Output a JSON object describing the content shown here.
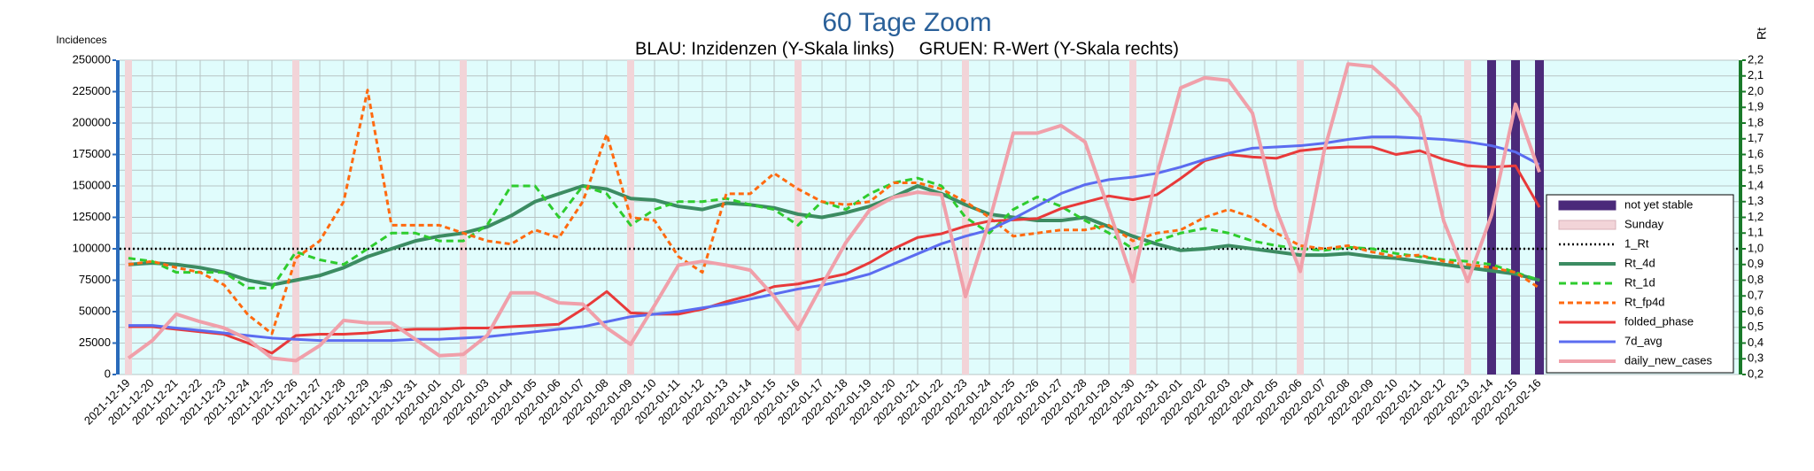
{
  "chart_data": {
    "type": "line",
    "title": "60 Tage Zoom",
    "subtitle": "BLAU: Inzidenzen (Y-Skala links)     GRUEN: R-Wert (Y-Skala rechts)",
    "y_label": "Incidences",
    "y2_label": "Rt",
    "categories": [
      "2021-12-19",
      "2021-12-20",
      "2021-12-21",
      "2021-12-22",
      "2021-12-23",
      "2021-12-24",
      "2021-12-25",
      "2021-12-26",
      "2021-12-27",
      "2021-12-28",
      "2021-12-29",
      "2021-12-30",
      "2021-12-31",
      "2022-01-01",
      "2022-01-02",
      "2022-01-03",
      "2022-01-04",
      "2022-01-05",
      "2022-01-06",
      "2022-01-07",
      "2022-01-08",
      "2022-01-09",
      "2022-01-10",
      "2022-01-11",
      "2022-01-12",
      "2022-01-13",
      "2022-01-14",
      "2022-01-15",
      "2022-01-16",
      "2022-01-17",
      "2022-01-18",
      "2022-01-19",
      "2022-01-20",
      "2022-01-21",
      "2022-01-22",
      "2022-01-23",
      "2022-01-24",
      "2022-01-25",
      "2022-01-26",
      "2022-01-27",
      "2022-01-28",
      "2022-01-29",
      "2022-01-30",
      "2022-01-31",
      "2022-02-01",
      "2022-02-02",
      "2022-02-03",
      "2022-02-04",
      "2022-02-05",
      "2022-02-06",
      "2022-02-07",
      "2022-02-08",
      "2022-02-09",
      "2022-02-10",
      "2022-02-11",
      "2022-02-12",
      "2022-02-13",
      "2022-02-14",
      "2022-02-15",
      "2022-02-16"
    ],
    "ylim": [
      0,
      250000
    ],
    "yticks": [
      0,
      25000,
      50000,
      75000,
      100000,
      125000,
      150000,
      175000,
      200000,
      225000,
      250000
    ],
    "y2lim": [
      0.2,
      2.2
    ],
    "y2ticks": [
      {
        "value": 0.2,
        "label": "0,2"
      },
      {
        "value": 0.3,
        "label": "0,3"
      },
      {
        "value": 0.4,
        "label": "0,4"
      },
      {
        "value": 0.5,
        "label": "0,5"
      },
      {
        "value": 0.6,
        "label": "0,6"
      },
      {
        "value": 0.7,
        "label": "0,7"
      },
      {
        "value": 0.8,
        "label": "0,8"
      },
      {
        "value": 0.9,
        "label": "0,9"
      },
      {
        "value": 1.0,
        "label": "1,0"
      },
      {
        "value": 1.1,
        "label": "1,1"
      },
      {
        "value": 1.2,
        "label": "1,2"
      },
      {
        "value": 1.3,
        "label": "1,3"
      },
      {
        "value": 1.4,
        "label": "1,4"
      },
      {
        "value": 1.5,
        "label": "1,5"
      },
      {
        "value": 1.6,
        "label": "1,6"
      },
      {
        "value": 1.7,
        "label": "1,7"
      },
      {
        "value": 1.8,
        "label": "1,8"
      },
      {
        "value": 1.9,
        "label": "1,9"
      },
      {
        "value": 2.0,
        "label": "2,0"
      },
      {
        "value": 2.1,
        "label": "2,1"
      },
      {
        "value": 2.2,
        "label": "2,2"
      }
    ],
    "grid": true,
    "legend": "right",
    "bands": [
      {
        "name": "not yet stable",
        "color": "#4b2a7a",
        "categories": [
          "2022-02-14",
          "2022-02-15",
          "2022-02-16"
        ]
      },
      {
        "name": "Sunday",
        "color": "#f2d4d8",
        "categories": [
          "2021-12-19",
          "2021-12-26",
          "2022-01-02",
          "2022-01-09",
          "2022-01-16",
          "2022-01-23",
          "2022-01-30",
          "2022-02-06",
          "2022-02-13"
        ]
      }
    ],
    "hlines": [
      {
        "name": "1_Rt",
        "value": 1.0,
        "axis": "y2",
        "color": "#000000"
      }
    ],
    "series": [
      {
        "name": "Rt_4d",
        "axis": "y2",
        "color": "#3c8c62",
        "width": 4,
        "dash": "none",
        "values": [
          0.9,
          0.91,
          0.9,
          0.88,
          0.85,
          0.8,
          0.77,
          0.8,
          0.83,
          0.88,
          0.95,
          1.0,
          1.05,
          1.08,
          1.1,
          1.14,
          1.21,
          1.3,
          1.35,
          1.4,
          1.38,
          1.32,
          1.31,
          1.27,
          1.25,
          1.29,
          1.28,
          1.26,
          1.22,
          1.2,
          1.23,
          1.27,
          1.33,
          1.4,
          1.35,
          1.28,
          1.22,
          1.2,
          1.18,
          1.18,
          1.2,
          1.14,
          1.08,
          1.03,
          0.99,
          1.0,
          1.02,
          1.0,
          0.98,
          0.96,
          0.96,
          0.97,
          0.95,
          0.94,
          0.92,
          0.9,
          0.88,
          0.86,
          0.84,
          0.8
        ]
      },
      {
        "name": "Rt_1d",
        "axis": "y2",
        "color": "#2ecc2e",
        "width": 3,
        "dash": "8 5",
        "values": [
          0.94,
          0.92,
          0.85,
          0.85,
          0.85,
          0.75,
          0.75,
          0.98,
          0.93,
          0.9,
          1.0,
          1.1,
          1.1,
          1.05,
          1.05,
          1.15,
          1.4,
          1.4,
          1.2,
          1.4,
          1.35,
          1.15,
          1.25,
          1.3,
          1.3,
          1.32,
          1.28,
          1.25,
          1.15,
          1.3,
          1.25,
          1.35,
          1.42,
          1.45,
          1.4,
          1.2,
          1.1,
          1.25,
          1.33,
          1.27,
          1.18,
          1.1,
          1.0,
          1.05,
          1.1,
          1.13,
          1.1,
          1.05,
          1.02,
          1.0,
          0.99,
          1.01,
          1.0,
          0.97,
          0.95,
          0.93,
          0.92,
          0.9,
          0.85,
          0.8
        ]
      },
      {
        "name": "Rt_fp4d",
        "axis": "y2",
        "color": "#ff6a10",
        "width": 3,
        "dash": "6 4",
        "values": [
          0.9,
          0.92,
          0.88,
          0.85,
          0.77,
          0.58,
          0.46,
          0.94,
          1.05,
          1.3,
          2.01,
          1.15,
          1.15,
          1.15,
          1.1,
          1.05,
          1.03,
          1.12,
          1.07,
          1.3,
          1.73,
          1.2,
          1.18,
          0.95,
          0.85,
          1.35,
          1.35,
          1.48,
          1.38,
          1.3,
          1.28,
          1.3,
          1.42,
          1.42,
          1.38,
          1.3,
          1.2,
          1.08,
          1.1,
          1.12,
          1.12,
          1.15,
          1.05,
          1.1,
          1.12,
          1.2,
          1.25,
          1.2,
          1.1,
          1.02,
          1.0,
          1.02,
          0.98,
          0.95,
          0.96,
          0.92,
          0.9,
          0.88,
          0.85,
          0.75
        ]
      },
      {
        "name": "folded_phase",
        "axis": "y",
        "color": "#e83a3a",
        "width": 3,
        "dash": "none",
        "values": [
          38000,
          38000,
          36000,
          34000,
          32000,
          25000,
          17000,
          31000,
          32000,
          32000,
          33000,
          35000,
          36000,
          36000,
          37000,
          37000,
          38000,
          39000,
          40000,
          52000,
          66000,
          49000,
          48000,
          48000,
          52000,
          58000,
          63000,
          70000,
          72000,
          76000,
          80000,
          89000,
          100000,
          109000,
          112000,
          118000,
          122000,
          123000,
          124000,
          132000,
          137000,
          142000,
          139000,
          143000,
          156000,
          170000,
          175000,
          173000,
          172000,
          178000,
          180000,
          181000,
          181000,
          175000,
          178000,
          171000,
          166000,
          165000,
          166000,
          133000
        ]
      },
      {
        "name": "7d_avg",
        "axis": "y",
        "color": "#5b6cf0",
        "width": 3,
        "dash": "none",
        "values": [
          39000,
          39000,
          37000,
          35000,
          33000,
          31000,
          29000,
          28000,
          27000,
          27000,
          27000,
          27000,
          28000,
          28000,
          29000,
          30000,
          32000,
          34000,
          36000,
          38000,
          42000,
          46000,
          48000,
          50000,
          53000,
          56000,
          60000,
          64000,
          68000,
          71000,
          75000,
          80000,
          88000,
          96000,
          104000,
          110000,
          115000,
          124000,
          134000,
          144000,
          151000,
          155000,
          157000,
          160000,
          165000,
          171000,
          176000,
          180000,
          181000,
          182000,
          184000,
          187000,
          189000,
          189000,
          188000,
          187000,
          185000,
          182000,
          177000,
          167000
        ]
      },
      {
        "name": "daily_new_cases",
        "axis": "y",
        "color": "#f0a0aa",
        "width": 4,
        "dash": "none",
        "values": [
          13000,
          27000,
          48000,
          42000,
          37000,
          28000,
          13000,
          11000,
          23000,
          43000,
          41000,
          41000,
          28000,
          15000,
          16000,
          31000,
          65000,
          65000,
          57000,
          56000,
          37000,
          24000,
          55000,
          87000,
          90000,
          87000,
          83000,
          62000,
          36000,
          71000,
          105000,
          131000,
          141000,
          145000,
          143000,
          62000,
          122000,
          192000,
          192000,
          198000,
          185000,
          131000,
          74000,
          159000,
          228000,
          236000,
          234000,
          208000,
          131000,
          82000,
          178000,
          247000,
          245000,
          228000,
          205000,
          122000,
          74000,
          127000,
          215000,
          161000
        ]
      }
    ]
  }
}
